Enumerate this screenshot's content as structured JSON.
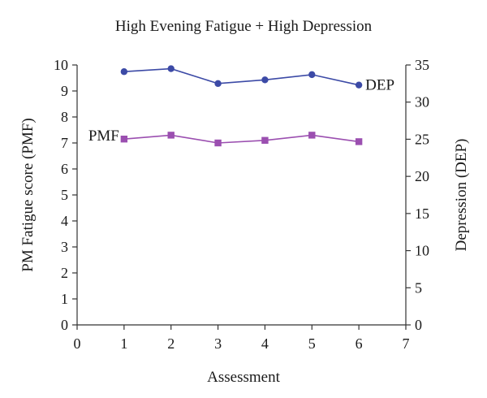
{
  "chart_data": {
    "type": "line",
    "title": "High Evening Fatigue + High Depression",
    "xlabel": "Assessment",
    "ylabel_left": "PM Fatigue score (PMF)",
    "ylabel_right": "Depression (DEP)",
    "xlim": [
      0,
      7
    ],
    "ylim_left": [
      0,
      10
    ],
    "ylim_right": [
      0,
      35
    ],
    "x_ticks": [
      0,
      1,
      2,
      3,
      4,
      5,
      6,
      7
    ],
    "y_ticks_left": [
      0,
      1,
      2,
      3,
      4,
      5,
      6,
      7,
      8,
      9,
      10
    ],
    "y_ticks_right": [
      0,
      5,
      10,
      15,
      20,
      25,
      30,
      35
    ],
    "grid": false,
    "series": [
      {
        "name": "DEP",
        "axis": "right",
        "marker": "circle",
        "color": "#3c4aa6",
        "x": [
          1,
          2,
          3,
          4,
          5,
          6
        ],
        "y": [
          34.1,
          34.5,
          32.5,
          33.0,
          33.7,
          32.3
        ]
      },
      {
        "name": "PMF",
        "axis": "left",
        "marker": "square",
        "color": "#9b4fb0",
        "x": [
          1,
          2,
          3,
          4,
          5,
          6
        ],
        "y": [
          7.15,
          7.3,
          7.0,
          7.1,
          7.3,
          7.05
        ]
      }
    ]
  }
}
